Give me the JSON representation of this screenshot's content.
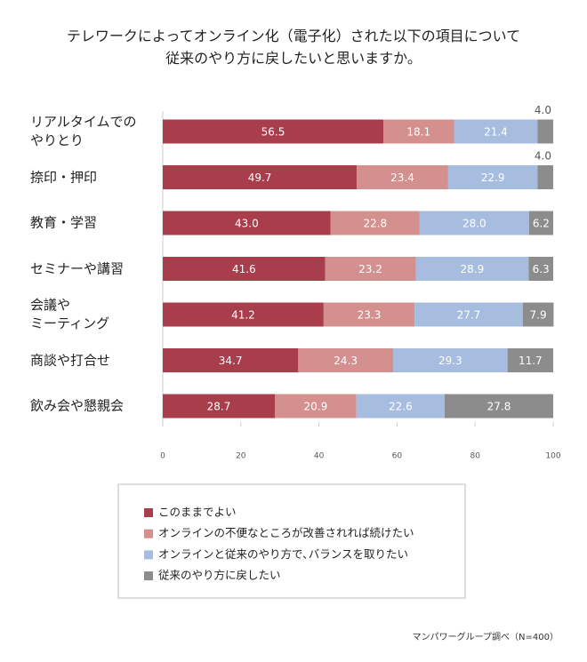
{
  "chart_data": {
    "type": "stacked-bar-horizontal",
    "title": "テレワークによってオンライン化（電子化）された以下の項目について\n従来のやり方に戻したいと思いますか。",
    "source": "マンパワーグループ調べ（N=400）",
    "categories": [
      "リアルタイムでの\nやりとり",
      "捺印・押印",
      "教育・学習",
      "セミナーや講習",
      "会議や\nミーティング",
      "商談や打合せ",
      "飲み会や懇親会"
    ],
    "series": [
      {
        "name": "このままでよい",
        "color": "#a83d4b",
        "values": [
          56.5,
          49.7,
          43.0,
          41.6,
          41.2,
          34.7,
          28.7
        ],
        "value_labels": [
          "56.5",
          "49.7",
          "43.0",
          "41.6",
          "41.2",
          "34.7",
          "28.7"
        ]
      },
      {
        "name": "オンラインの不便なところが改善されれば続けたい",
        "color": "#d4908e",
        "values": [
          18.1,
          23.4,
          22.8,
          23.2,
          23.3,
          24.3,
          20.9
        ],
        "value_labels": [
          "18.1",
          "23.4",
          "22.8",
          "23.2",
          "23.3",
          "24.3",
          "20.9"
        ]
      },
      {
        "name": "オンラインと従来のやり方で､バランスを取りたい",
        "color": "#a7bde0",
        "values": [
          21.4,
          22.9,
          28.0,
          28.9,
          27.7,
          29.3,
          22.6
        ],
        "value_labels": [
          "21.4",
          "22.9",
          "28.0",
          "28.9",
          "27.7",
          "29.3",
          "22.6"
        ]
      },
      {
        "name": "従来のやり方に戻したい",
        "color": "#8c8c8c",
        "values": [
          4.0,
          4.0,
          6.2,
          6.3,
          7.9,
          11.7,
          27.8
        ],
        "value_labels": [
          "4.0",
          "4.0",
          "6.2",
          "6.3",
          "7.9",
          "11.7",
          "27.8"
        ]
      }
    ],
    "xlim": [
      0,
      100
    ],
    "xticks": [
      0,
      20,
      40,
      60,
      80,
      100
    ],
    "grid": false
  }
}
